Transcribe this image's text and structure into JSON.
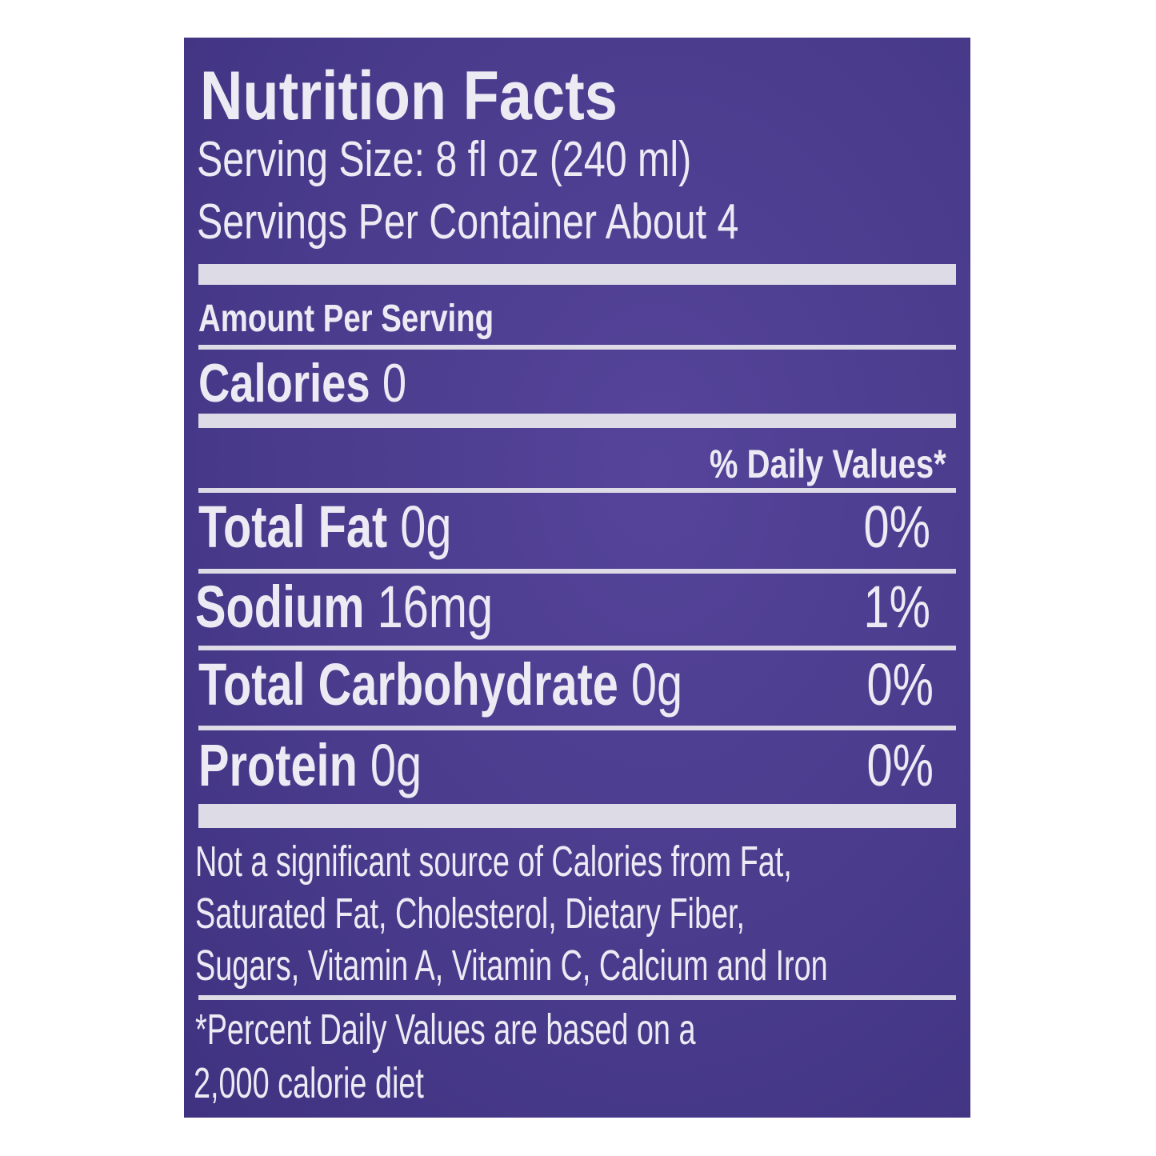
{
  "label": {
    "title": "Nutrition Facts",
    "serving_size": "Serving Size: 8 fl oz (240 ml)",
    "servings_per_container": "Servings Per Container About 4",
    "amount_per_serving": "Amount Per Serving",
    "calories_label": "Calories",
    "calories_value": "0",
    "daily_values_header": "% Daily Values*",
    "nutrients": [
      {
        "name": "Total Fat",
        "amount": "0g",
        "dv": "0%"
      },
      {
        "name": "Sodium",
        "amount": "16mg",
        "dv": "1%"
      },
      {
        "name": "Total Carbohydrate",
        "amount": "0g",
        "dv": "0%"
      },
      {
        "name": "Protein",
        "amount": "0g",
        "dv": "0%"
      }
    ],
    "footnote_lines": [
      "Not a significant source of Calories from Fat,",
      "Saturated Fat, Cholesterol, Dietary Fiber,",
      "Sugars, Vitamin A, Vitamin C, Calcium and Iron"
    ],
    "dv_footnote_lines": [
      "*Percent Daily Values are based on a",
      "2,000 calorie diet"
    ]
  },
  "colors": {
    "background": "#4a3b8c",
    "text": "#ecebf4"
  }
}
